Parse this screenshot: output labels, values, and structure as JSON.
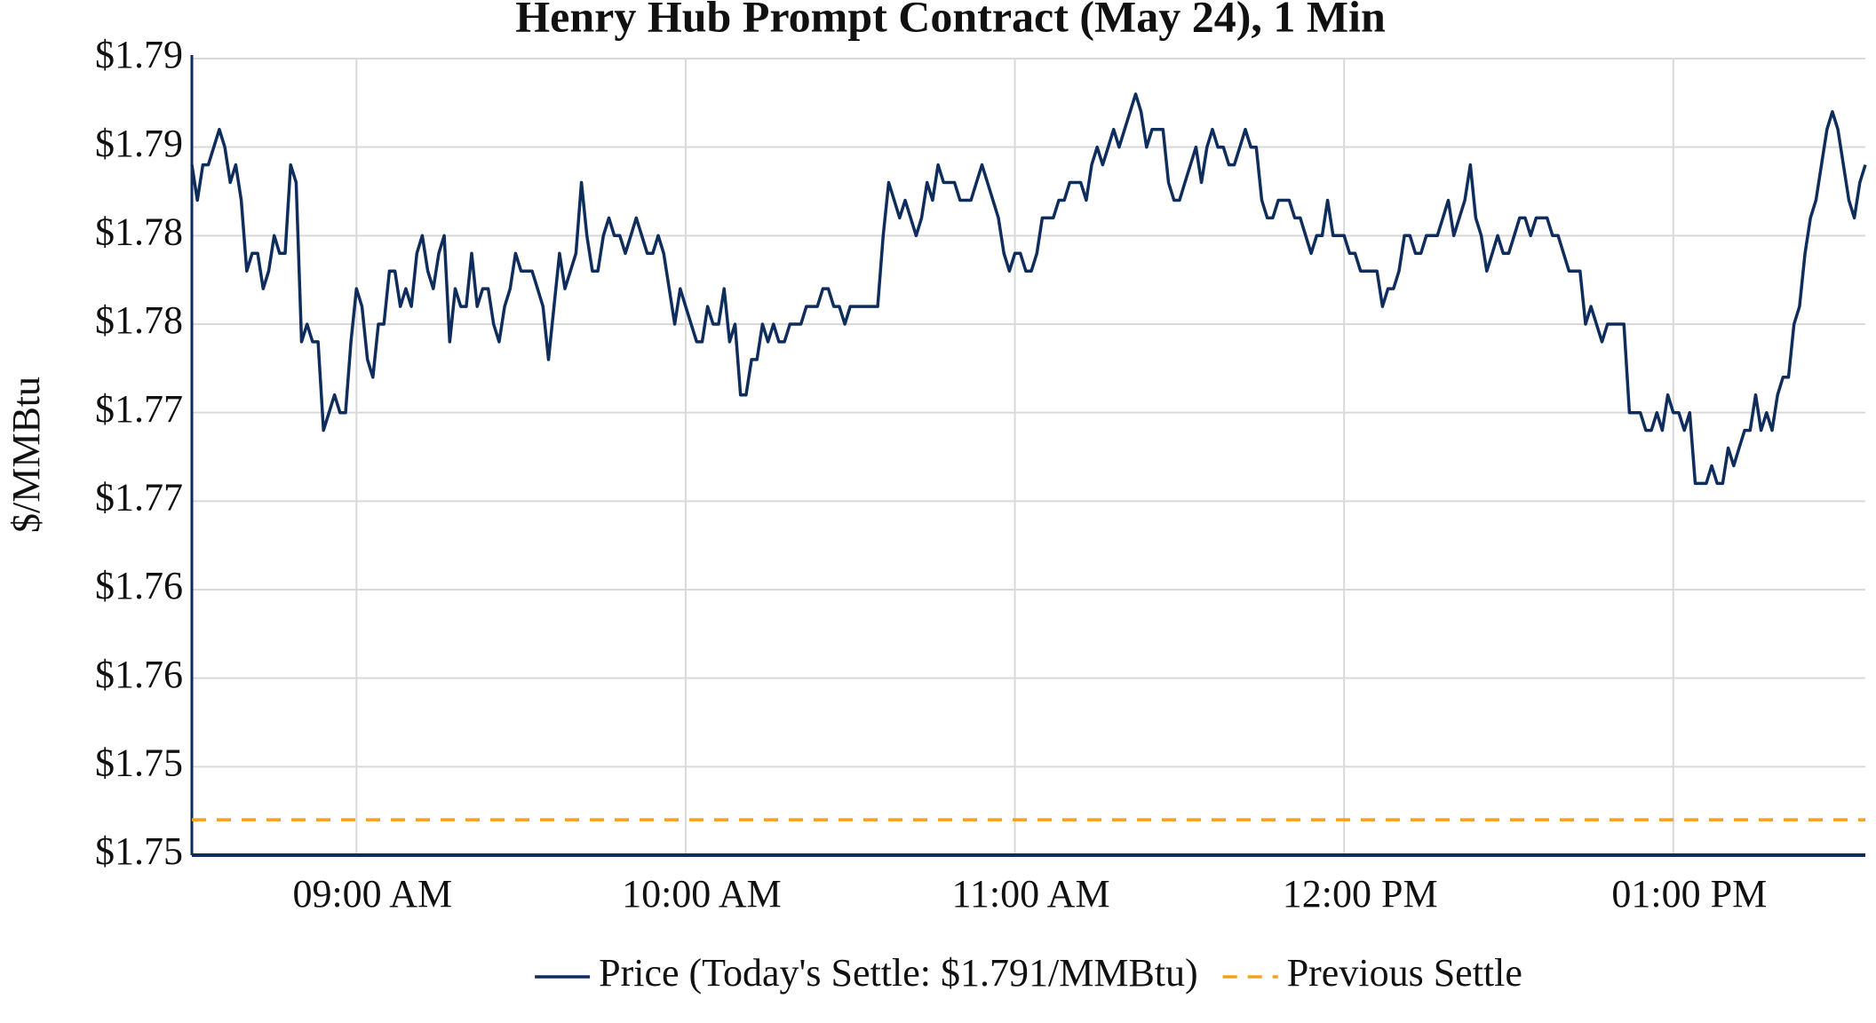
{
  "chart_data": {
    "type": "line",
    "title": "Henry Hub Prompt Contract (May 24), 1 Min",
    "y_label": "$/MMBtu",
    "xlim": [
      "08:30",
      "13:35"
    ],
    "xticks": [
      {
        "value": "09:00",
        "label": "09:00 AM"
      },
      {
        "value": "10:00",
        "label": "10:00 AM"
      },
      {
        "value": "11:00",
        "label": "11:00 AM"
      },
      {
        "value": "12:00",
        "label": "12:00 PM"
      },
      {
        "value": "13:00",
        "label": "01:00 PM"
      }
    ],
    "ylim": [
      1.75,
      1.795
    ],
    "yticks": [
      {
        "value": 1.75,
        "label": "$1.75"
      },
      {
        "value": 1.755,
        "label": "$1.75"
      },
      {
        "value": 1.76,
        "label": "$1.76"
      },
      {
        "value": 1.765,
        "label": "$1.76"
      },
      {
        "value": 1.77,
        "label": "$1.77"
      },
      {
        "value": 1.775,
        "label": "$1.77"
      },
      {
        "value": 1.78,
        "label": "$1.78"
      },
      {
        "value": 1.785,
        "label": "$1.78"
      },
      {
        "value": 1.79,
        "label": "$1.79"
      },
      {
        "value": 1.795,
        "label": "$1.79"
      }
    ],
    "grid": true,
    "legend": "bottom",
    "x": [
      "08:30",
      "08:31",
      "08:32",
      "08:33",
      "08:35",
      "08:36",
      "08:37",
      "08:38",
      "08:39",
      "08:40",
      "08:41",
      "08:42",
      "08:43",
      "08:44",
      "08:45",
      "08:46",
      "08:47",
      "08:48",
      "08:49",
      "08:50",
      "08:51",
      "08:52",
      "08:53",
      "08:54",
      "08:55",
      "08:56",
      "08:57",
      "08:58",
      "08:59",
      "09:00",
      "09:01",
      "09:02",
      "09:03",
      "09:04",
      "09:05",
      "09:06",
      "09:07",
      "09:08",
      "09:09",
      "09:10",
      "09:11",
      "09:12",
      "09:13",
      "09:14",
      "09:15",
      "09:16",
      "09:17",
      "09:18",
      "09:19",
      "09:20",
      "09:21",
      "09:22",
      "09:23",
      "09:24",
      "09:25",
      "09:26",
      "09:27",
      "09:28",
      "09:29",
      "09:30",
      "09:31",
      "09:32",
      "09:33",
      "09:34",
      "09:35",
      "09:36",
      "09:37",
      "09:38",
      "09:39",
      "09:40",
      "09:41",
      "09:42",
      "09:43",
      "09:44",
      "09:45",
      "09:46",
      "09:47",
      "09:48",
      "09:49",
      "09:50",
      "09:51",
      "09:52",
      "09:53",
      "09:54",
      "09:55",
      "09:56",
      "09:57",
      "09:58",
      "09:59",
      "10:00",
      "10:01",
      "10:02",
      "10:03",
      "10:04",
      "10:05",
      "10:06",
      "10:07",
      "10:08",
      "10:09",
      "10:10",
      "10:11",
      "10:12",
      "10:13",
      "10:14",
      "10:15",
      "10:16",
      "10:17",
      "10:18",
      "10:19",
      "10:20",
      "10:21",
      "10:22",
      "10:23",
      "10:24",
      "10:25",
      "10:26",
      "10:27",
      "10:28",
      "10:29",
      "10:30",
      "10:31",
      "10:35",
      "10:36",
      "10:37",
      "10:38",
      "10:39",
      "10:40",
      "10:41",
      "10:42",
      "10:43",
      "10:44",
      "10:45",
      "10:46",
      "10:47",
      "10:48",
      "10:49",
      "10:50",
      "10:52",
      "10:53",
      "10:54",
      "10:55",
      "10:57",
      "10:58",
      "10:59",
      "11:00",
      "11:01",
      "11:02",
      "11:03",
      "11:04",
      "11:05",
      "11:06",
      "11:07",
      "11:08",
      "11:09",
      "11:10",
      "11:12",
      "11:13",
      "11:14",
      "11:15",
      "11:16",
      "11:17",
      "11:18",
      "11:19",
      "11:20",
      "11:21",
      "11:22",
      "11:23",
      "11:24",
      "11:25",
      "11:27",
      "11:28",
      "11:29",
      "11:30",
      "11:31",
      "11:32",
      "11:33",
      "11:34",
      "11:35",
      "11:36",
      "11:37",
      "11:38",
      "11:39",
      "11:40",
      "11:41",
      "11:42",
      "11:43",
      "11:44",
      "11:45",
      "11:46",
      "11:47",
      "11:48",
      "11:50",
      "11:51",
      "11:52",
      "11:53",
      "11:54",
      "11:55",
      "11:56",
      "11:57",
      "11:58",
      "12:00",
      "12:01",
      "12:02",
      "12:03",
      "12:06",
      "12:07",
      "12:08",
      "12:09",
      "12:10",
      "12:11",
      "12:12",
      "12:13",
      "12:14",
      "12:15",
      "12:17",
      "12:18",
      "12:19",
      "12:20",
      "12:21",
      "12:22",
      "12:23",
      "12:24",
      "12:25",
      "12:26",
      "12:27",
      "12:28",
      "12:29",
      "12:30",
      "12:31",
      "12:32",
      "12:33",
      "12:34",
      "12:35",
      "12:37",
      "12:38",
      "12:39",
      "12:41",
      "12:43",
      "12:44",
      "12:45",
      "12:46",
      "12:47",
      "12:48",
      "12:51",
      "12:52",
      "12:54",
      "12:55",
      "12:56",
      "12:57",
      "12:58",
      "12:59",
      "13:00",
      "13:01",
      "13:02",
      "13:03",
      "13:04",
      "13:06",
      "13:07",
      "13:08",
      "13:09",
      "13:10",
      "13:11",
      "13:12",
      "13:13",
      "13:14",
      "13:15",
      "13:16",
      "13:17",
      "13:18",
      "13:19",
      "13:20",
      "13:21",
      "13:22",
      "13:23",
      "13:24",
      "13:25",
      "13:26",
      "13:27",
      "13:28",
      "13:29",
      "13:30",
      "13:31",
      "13:32",
      "13:33",
      "13:34",
      "13:35"
    ],
    "series": [
      {
        "name": "Price (Today's Settle: $1.791/MMBtu)",
        "color": "#0f2d5c",
        "values": [
          1.789,
          1.787,
          1.789,
          1.789,
          1.791,
          1.79,
          1.788,
          1.789,
          1.787,
          1.783,
          1.784,
          1.784,
          1.782,
          1.783,
          1.785,
          1.784,
          1.784,
          1.789,
          1.788,
          1.779,
          1.78,
          1.779,
          1.779,
          1.774,
          1.775,
          1.776,
          1.775,
          1.775,
          1.779,
          1.782,
          1.781,
          1.778,
          1.777,
          1.78,
          1.78,
          1.783,
          1.783,
          1.781,
          1.782,
          1.781,
          1.784,
          1.785,
          1.783,
          1.782,
          1.784,
          1.785,
          1.779,
          1.782,
          1.781,
          1.781,
          1.784,
          1.781,
          1.782,
          1.782,
          1.78,
          1.779,
          1.781,
          1.782,
          1.784,
          1.783,
          1.783,
          1.783,
          1.782,
          1.781,
          1.778,
          1.781,
          1.784,
          1.782,
          1.783,
          1.784,
          1.788,
          1.785,
          1.783,
          1.783,
          1.785,
          1.786,
          1.785,
          1.785,
          1.784,
          1.785,
          1.786,
          1.785,
          1.784,
          1.784,
          1.785,
          1.784,
          1.782,
          1.78,
          1.782,
          1.781,
          1.78,
          1.779,
          1.779,
          1.781,
          1.78,
          1.78,
          1.782,
          1.779,
          1.78,
          1.776,
          1.776,
          1.778,
          1.778,
          1.78,
          1.779,
          1.78,
          1.779,
          1.779,
          1.78,
          1.78,
          1.78,
          1.781,
          1.781,
          1.781,
          1.782,
          1.782,
          1.781,
          1.781,
          1.78,
          1.781,
          1.781,
          1.781,
          1.785,
          1.788,
          1.787,
          1.786,
          1.787,
          1.786,
          1.785,
          1.786,
          1.788,
          1.787,
          1.789,
          1.788,
          1.788,
          1.788,
          1.787,
          1.787,
          1.788,
          1.789,
          1.788,
          1.786,
          1.784,
          1.783,
          1.784,
          1.784,
          1.783,
          1.783,
          1.784,
          1.786,
          1.786,
          1.786,
          1.787,
          1.787,
          1.788,
          1.788,
          1.787,
          1.789,
          1.79,
          1.789,
          1.79,
          1.791,
          1.79,
          1.791,
          1.792,
          1.793,
          1.792,
          1.79,
          1.791,
          1.791,
          1.788,
          1.787,
          1.787,
          1.788,
          1.789,
          1.79,
          1.788,
          1.79,
          1.791,
          1.79,
          1.79,
          1.789,
          1.789,
          1.79,
          1.791,
          1.79,
          1.79,
          1.787,
          1.786,
          1.786,
          1.787,
          1.787,
          1.786,
          1.786,
          1.785,
          1.784,
          1.785,
          1.785,
          1.787,
          1.785,
          1.785,
          1.784,
          1.784,
          1.783,
          1.783,
          1.781,
          1.782,
          1.782,
          1.783,
          1.785,
          1.785,
          1.784,
          1.784,
          1.785,
          1.785,
          1.786,
          1.787,
          1.785,
          1.786,
          1.787,
          1.789,
          1.786,
          1.785,
          1.783,
          1.784,
          1.785,
          1.784,
          1.784,
          1.785,
          1.786,
          1.786,
          1.785,
          1.786,
          1.786,
          1.785,
          1.785,
          1.783,
          1.783,
          1.78,
          1.781,
          1.78,
          1.779,
          1.78,
          1.78,
          1.775,
          1.775,
          1.774,
          1.774,
          1.775,
          1.774,
          1.776,
          1.775,
          1.775,
          1.774,
          1.775,
          1.771,
          1.771,
          1.772,
          1.771,
          1.771,
          1.773,
          1.772,
          1.773,
          1.774,
          1.774,
          1.776,
          1.774,
          1.775,
          1.774,
          1.776,
          1.777,
          1.777,
          1.78,
          1.781,
          1.784,
          1.786,
          1.787,
          1.789,
          1.791,
          1.792,
          1.791,
          1.789,
          1.787,
          1.786,
          1.788,
          1.789
        ]
      },
      {
        "name": "Previous Settle",
        "color": "#f5a01a",
        "dashed": true,
        "value": 1.752
      }
    ]
  }
}
